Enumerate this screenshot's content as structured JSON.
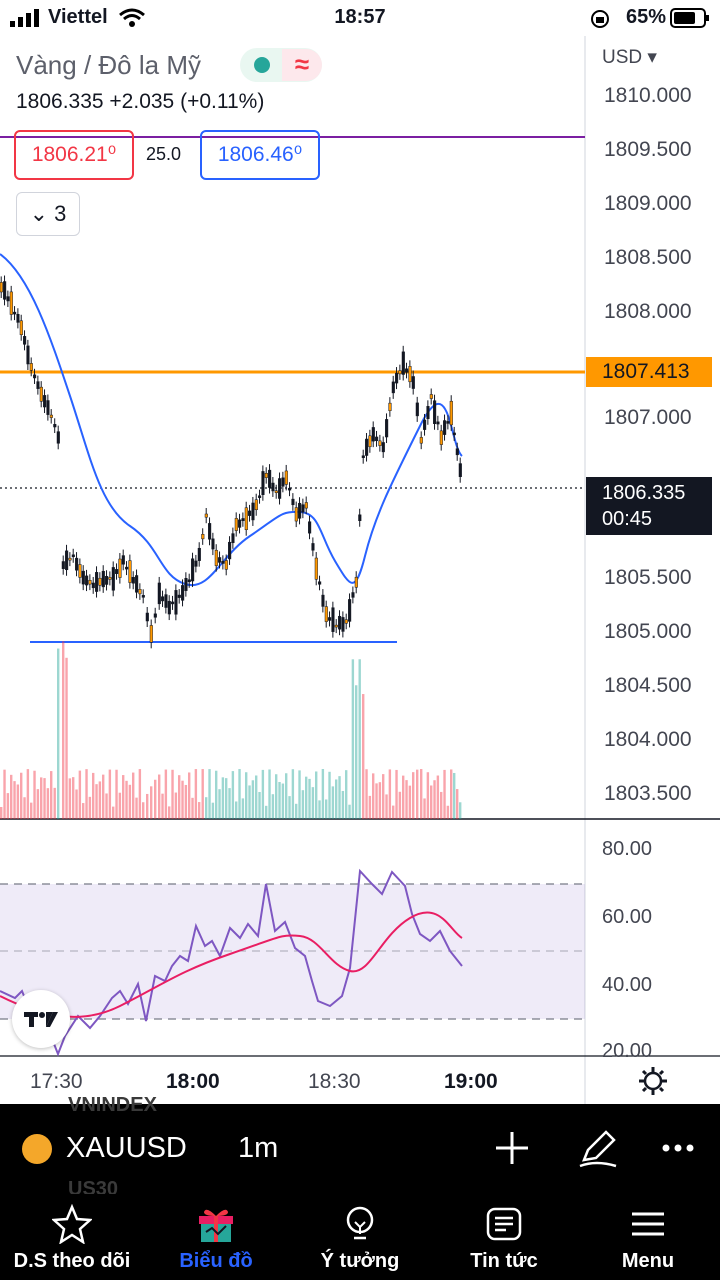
{
  "status_bar": {
    "carrier": "Viettel",
    "time": "18:57",
    "battery": "65%"
  },
  "header": {
    "symbol_name": "Vàng / Đô la Mỹ",
    "price_change": "1806.335  +2.035 (+0.11%)",
    "sell_price": "1806.21⁰",
    "spread": "25.0",
    "buy_price": "1806.46⁰",
    "indicators_count": "3"
  },
  "price_axis": {
    "currency": "USD",
    "labels": [
      "1810.000",
      "1809.500",
      "1809.000",
      "1808.500",
      "1808.000",
      "1807.000",
      "1805.500",
      "1805.000",
      "1804.500",
      "1804.000",
      "1803.500"
    ],
    "orange_marker": "1807.413",
    "current_price": "1806.335",
    "countdown": "00:45"
  },
  "rsi_axis": {
    "labels": [
      "80.00",
      "60.00",
      "40.00",
      "20.00"
    ]
  },
  "time_axis": {
    "labels": [
      "17:30",
      "18:00",
      "18:30",
      "19:00"
    ]
  },
  "colors": {
    "up": "#26a69a",
    "down": "#f23645",
    "ma": "#2962ff",
    "orange": "#ff9800",
    "rsi": "#7e57c2",
    "rsi_ma": "#e91e63"
  },
  "toolbar": {
    "symbol": "XAUUSD",
    "interval": "1m",
    "bg_text_1": "VNINDEX",
    "bg_text_2": "US30"
  },
  "nav": [
    {
      "label": "D.S theo dõi",
      "icon": "star-icon"
    },
    {
      "label": "Biểu đồ",
      "icon": "gift-icon"
    },
    {
      "label": "Ý tưởng",
      "icon": "lightbulb-icon"
    },
    {
      "label": "Tin tức",
      "icon": "news-icon"
    },
    {
      "label": "Menu",
      "icon": "menu-icon"
    }
  ]
}
